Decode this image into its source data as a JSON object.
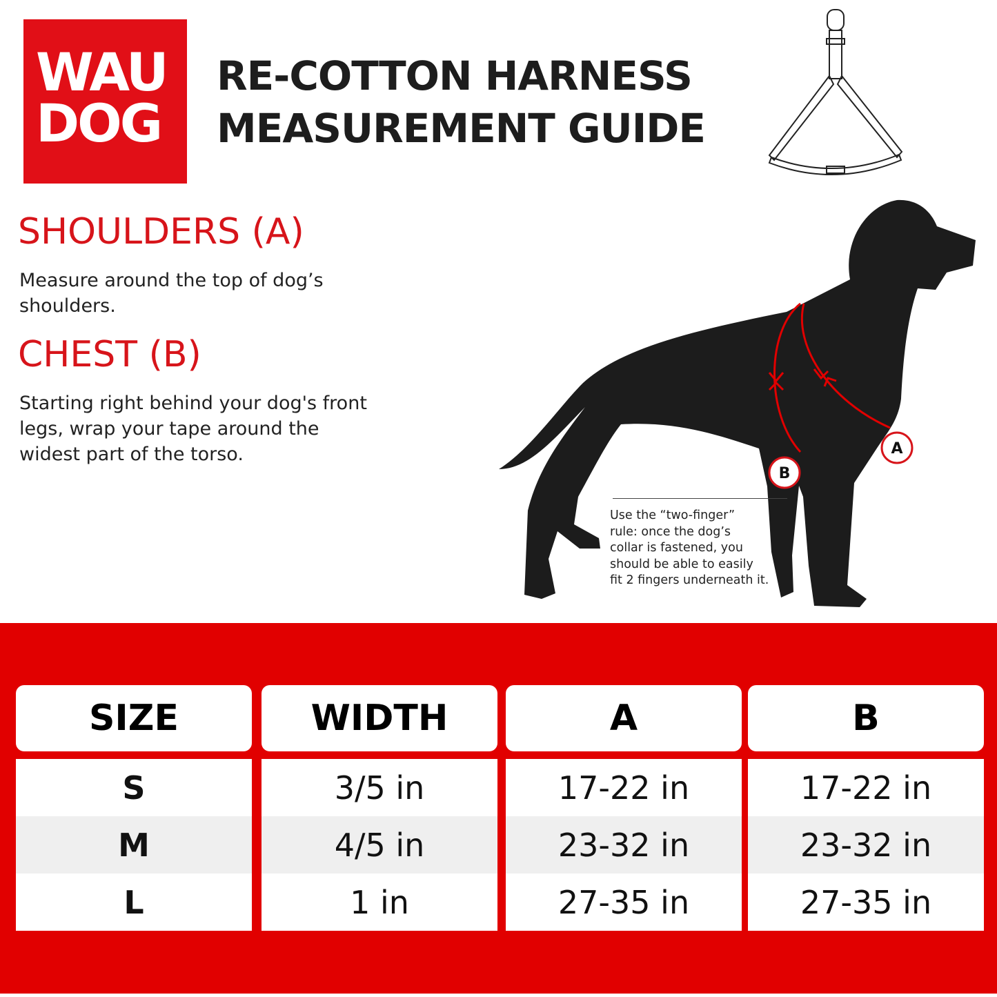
{
  "brand": {
    "line1": "WAU",
    "line2": "DOG",
    "color": "#e10f17"
  },
  "title": {
    "line1": "RE-COTTON HARNESS",
    "line2": "MEASUREMENT GUIDE"
  },
  "sections": [
    {
      "heading": "SHOULDERS (A)",
      "text1": "Measure around the top of dog’s",
      "text2": "shoulders."
    },
    {
      "heading": "CHEST (B)",
      "text1": "Starting right behind your dog's front",
      "text2": "legs, wrap your tape around the",
      "text3": "widest part of the torso."
    }
  ],
  "diagram": {
    "label_a": "A",
    "label_b": "B"
  },
  "note": {
    "lines": [
      "Use the “two-finger”",
      "rule: once the dog’s",
      "collar is fastened, you",
      "should be able to easily",
      "fit 2 fingers underneath it."
    ]
  },
  "table": {
    "headers": [
      "SIZE",
      "WIDTH",
      "A",
      "B"
    ],
    "rows": [
      [
        "S",
        "3/5 in",
        "17-22 in",
        "17-22 in"
      ],
      [
        "M",
        "4/5 in",
        "23-32 in",
        "23-32 in"
      ],
      [
        "L",
        "1 in",
        "27-35 in",
        "27-35 in"
      ]
    ]
  },
  "colors": {
    "accent": "#e10000",
    "silhouette": "#1c1c1c"
  }
}
